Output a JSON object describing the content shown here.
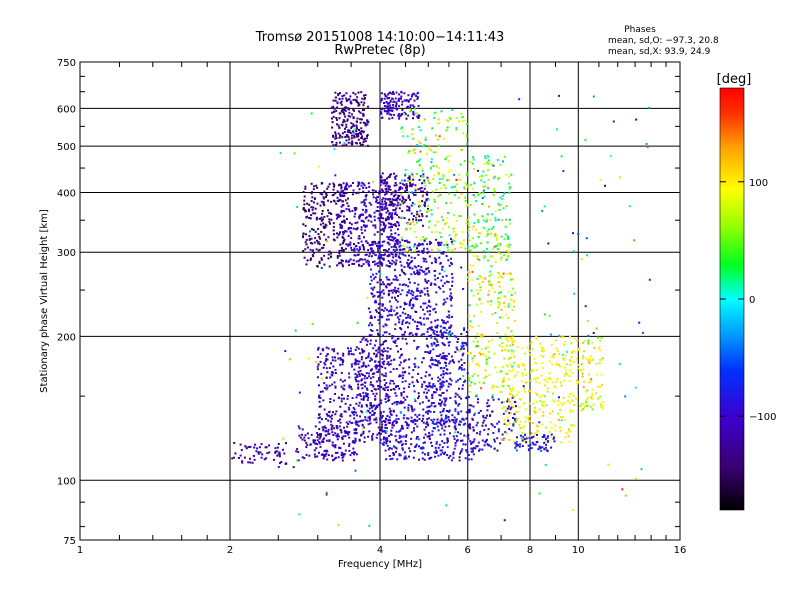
{
  "chart_data": {
    "type": "scatter",
    "title": "Tromsø 20151008 14:10:00−14:11:43",
    "subtitle": "RwPretec (8p)",
    "xlabel": "Frequency [MHz]",
    "ylabel": "Stationary phase Virtual Height [km]",
    "x_scale": "log",
    "y_scale": "log",
    "xlim": [
      1,
      16
    ],
    "ylim": [
      75,
      750
    ],
    "x_ticks": [
      1,
      2,
      4,
      6,
      8,
      10,
      16
    ],
    "x_tick_labels": [
      "1",
      "2",
      "4",
      "6",
      "8",
      "10",
      "16"
    ],
    "y_ticks": [
      75,
      100,
      200,
      300,
      400,
      500,
      600,
      750
    ],
    "y_tick_labels": [
      "75",
      "100",
      "200",
      "300",
      "400",
      "500",
      "600",
      "750"
    ],
    "grid": true,
    "stats": {
      "heading": "Phases",
      "line_o": "mean, sd,O: −97.3, 20.8",
      "line_x": "mean, sd,X:  93.9, 24.9"
    },
    "colorbar": {
      "label": "[deg]",
      "range": [
        -180,
        180
      ],
      "ticks": [
        100,
        0,
        -100
      ],
      "tick_labels": [
        "100",
        "0",
        "−100"
      ],
      "placement": "right"
    },
    "clusters": [
      {
        "f": [
          2.0,
          2.6
        ],
        "h": [
          108,
          120
        ],
        "n": 60,
        "phase": -120,
        "sd": 20
      },
      {
        "f": [
          2.7,
          3.6
        ],
        "h": [
          110,
          130
        ],
        "n": 140,
        "phase": -110,
        "sd": 25
      },
      {
        "f": [
          3.0,
          4.2
        ],
        "h": [
          120,
          190
        ],
        "n": 380,
        "phase": -110,
        "sd": 25
      },
      {
        "f": [
          3.5,
          5.5
        ],
        "h": [
          130,
          200
        ],
        "n": 380,
        "phase": -100,
        "sd": 30
      },
      {
        "f": [
          4.0,
          6.2
        ],
        "h": [
          110,
          135
        ],
        "n": 260,
        "phase": -95,
        "sd": 30
      },
      {
        "f": [
          2.8,
          3.4
        ],
        "h": [
          280,
          420
        ],
        "n": 220,
        "phase": -140,
        "sd": 20
      },
      {
        "f": [
          3.2,
          3.8
        ],
        "h": [
          500,
          650
        ],
        "n": 220,
        "phase": -135,
        "sd": 20
      },
      {
        "f": [
          3.3,
          4.4
        ],
        "h": [
          280,
          420
        ],
        "n": 400,
        "phase": -110,
        "sd": 25
      },
      {
        "f": [
          3.8,
          5.6
        ],
        "h": [
          200,
          320
        ],
        "n": 520,
        "phase": -100,
        "sd": 35
      },
      {
        "f": [
          4.0,
          5.0
        ],
        "h": [
          340,
          440
        ],
        "n": 200,
        "phase": -120,
        "sd": 25
      },
      {
        "f": [
          4.0,
          4.8
        ],
        "h": [
          570,
          650
        ],
        "n": 130,
        "phase": -110,
        "sd": 30
      },
      {
        "f": [
          4.4,
          6.0
        ],
        "h": [
          300,
          600
        ],
        "n": 240,
        "phase": 60,
        "sd": 60
      },
      {
        "f": [
          5.0,
          6.0
        ],
        "h": [
          130,
          210
        ],
        "n": 200,
        "phase": -90,
        "sd": 40
      },
      {
        "f": [
          6.0,
          7.3
        ],
        "h": [
          290,
          480
        ],
        "n": 170,
        "phase": 50,
        "sd": 70
      },
      {
        "f": [
          6.0,
          7.5
        ],
        "h": [
          150,
          300
        ],
        "n": 200,
        "phase": 80,
        "sd": 50
      },
      {
        "f": [
          6.0,
          7.5
        ],
        "h": [
          115,
          150
        ],
        "n": 120,
        "phase": -100,
        "sd": 40
      },
      {
        "f": [
          7.0,
          9.8
        ],
        "h": [
          120,
          200
        ],
        "n": 280,
        "phase": 95,
        "sd": 25
      },
      {
        "f": [
          7.5,
          9.0
        ],
        "h": [
          115,
          125
        ],
        "n": 60,
        "phase": -80,
        "sd": 40
      },
      {
        "f": [
          9.8,
          11.2
        ],
        "h": [
          140,
          200
        ],
        "n": 90,
        "phase": 90,
        "sd": 40
      },
      {
        "f": [
          2.5,
          14.0
        ],
        "h": [
          80,
          650
        ],
        "n": 140,
        "phase": 0,
        "sd": 110
      }
    ]
  }
}
